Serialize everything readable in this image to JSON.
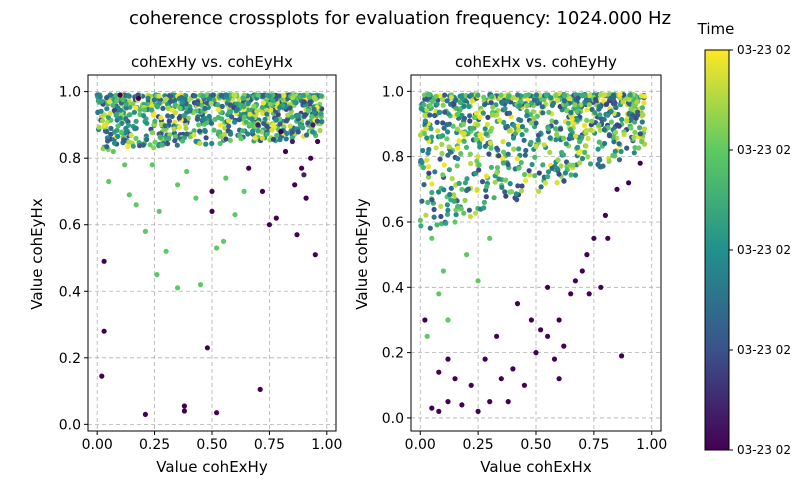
{
  "figure": {
    "suptitle": "coherence crossplots for evaluation frequency: 1024.000 Hz"
  },
  "colorbar": {
    "label": "Time",
    "tick_labels": [
      "03-23 02",
      "03-23 02",
      "03-23 02",
      "03-23 02",
      "03-23 02"
    ],
    "colormap": [
      "#440154",
      "#3b528b",
      "#21918c",
      "#5ec962",
      "#fde725"
    ]
  },
  "chart_data": [
    {
      "type": "scatter",
      "title": "cohExHy vs. cohEyHx",
      "xlabel": "Value cohExHy",
      "ylabel": "Value cohEyHx",
      "xlim": [
        -0.04,
        1.04
      ],
      "ylim": [
        -0.02,
        1.05
      ],
      "xticks": [
        0.0,
        0.25,
        0.5,
        0.75,
        1.0
      ],
      "xtick_labels": [
        "0.00",
        "0.25",
        "0.50",
        "0.75",
        "1.00"
      ],
      "yticks": [
        0.0,
        0.2,
        0.4,
        0.6,
        0.8,
        1.0
      ],
      "ytick_labels": [
        "0.0",
        "0.2",
        "0.4",
        "0.6",
        "0.8",
        "1.0"
      ],
      "grid": true,
      "color_by": "Time",
      "points": [
        [
          0.03,
          0.49,
          0.0
        ],
        [
          0.03,
          0.28,
          0.0
        ],
        [
          0.02,
          0.145,
          0.0
        ],
        [
          0.21,
          0.03,
          0.0
        ],
        [
          0.38,
          0.055,
          0.0
        ],
        [
          0.38,
          0.04,
          0.0
        ],
        [
          0.52,
          0.035,
          0.0
        ],
        [
          0.71,
          0.105,
          0.0
        ],
        [
          0.48,
          0.23,
          0.0
        ],
        [
          0.95,
          0.51,
          0.0
        ],
        [
          0.87,
          0.57,
          0.0
        ],
        [
          0.75,
          0.6,
          0.0
        ],
        [
          0.78,
          0.62,
          0.0
        ],
        [
          0.91,
          0.68,
          0.0
        ],
        [
          0.66,
          0.77,
          0.0
        ],
        [
          0.89,
          0.77,
          0.0
        ],
        [
          0.93,
          0.8,
          0.0
        ],
        [
          0.86,
          0.72,
          0.0
        ],
        [
          0.5,
          0.64,
          0.0
        ],
        [
          0.5,
          0.7,
          0.0
        ],
        [
          0.96,
          0.85,
          0.0
        ],
        [
          0.82,
          0.82,
          0.0
        ],
        [
          0.1,
          0.99,
          0.0
        ],
        [
          0.18,
          0.98,
          0.0
        ],
        [
          0.72,
          0.7,
          0.0
        ],
        [
          0.8,
          0.88,
          0.0
        ],
        [
          0.9,
          0.75,
          0.1
        ],
        [
          0.94,
          0.9,
          0.1
        ],
        [
          0.85,
          0.85,
          0.1
        ],
        [
          0.7,
          0.9,
          0.1
        ],
        [
          0.35,
          0.72,
          0.75
        ],
        [
          0.14,
          0.69,
          0.75
        ],
        [
          0.27,
          0.64,
          0.75
        ],
        [
          0.21,
          0.58,
          0.75
        ],
        [
          0.26,
          0.45,
          0.75
        ],
        [
          0.35,
          0.41,
          0.75
        ],
        [
          0.45,
          0.42,
          0.75
        ],
        [
          0.52,
          0.53,
          0.75
        ],
        [
          0.55,
          0.55,
          0.75
        ],
        [
          0.6,
          0.63,
          0.75
        ],
        [
          0.07,
          0.82,
          0.75
        ],
        [
          0.12,
          0.78,
          0.75
        ],
        [
          0.24,
          0.78,
          0.75
        ],
        [
          0.39,
          0.76,
          0.75
        ],
        [
          0.56,
          0.74,
          0.75
        ],
        [
          0.05,
          0.73,
          0.75
        ],
        [
          0.3,
          0.52,
          0.75
        ],
        [
          0.17,
          0.66,
          0.75
        ],
        [
          0.43,
          0.68,
          0.75
        ],
        [
          0.64,
          0.7,
          0.75
        ]
      ],
      "dense_band": {
        "x_range": [
          0.0,
          0.98
        ],
        "y_top": 0.99,
        "y_floor_at_x0": 0.82,
        "y_floor_at_x1": 0.86
      }
    },
    {
      "type": "scatter",
      "title": "cohExHx vs. cohEyHy",
      "xlabel": "Value cohExHx",
      "ylabel": "Value cohEyHy",
      "xlim": [
        -0.04,
        1.04
      ],
      "ylim": [
        -0.04,
        1.05
      ],
      "xticks": [
        0.0,
        0.25,
        0.5,
        0.75,
        1.0
      ],
      "xtick_labels": [
        "0.00",
        "0.25",
        "0.50",
        "0.75",
        "1.00"
      ],
      "yticks": [
        0.0,
        0.2,
        0.4,
        0.6,
        0.8,
        1.0
      ],
      "ytick_labels": [
        "0.0",
        "0.2",
        "0.4",
        "0.6",
        "0.8",
        "1.0"
      ],
      "grid": true,
      "color_by": "Time",
      "points": [
        [
          0.05,
          0.03,
          0.0
        ],
        [
          0.08,
          0.02,
          0.0
        ],
        [
          0.12,
          0.05,
          0.0
        ],
        [
          0.18,
          0.04,
          0.0
        ],
        [
          0.25,
          0.02,
          0.0
        ],
        [
          0.3,
          0.05,
          0.0
        ],
        [
          0.22,
          0.1,
          0.0
        ],
        [
          0.35,
          0.12,
          0.0
        ],
        [
          0.28,
          0.18,
          0.0
        ],
        [
          0.4,
          0.15,
          0.0
        ],
        [
          0.45,
          0.1,
          0.0
        ],
        [
          0.5,
          0.2,
          0.0
        ],
        [
          0.55,
          0.25,
          0.0
        ],
        [
          0.6,
          0.3,
          0.0
        ],
        [
          0.65,
          0.38,
          0.0
        ],
        [
          0.7,
          0.45,
          0.0
        ],
        [
          0.72,
          0.5,
          0.0
        ],
        [
          0.75,
          0.55,
          0.0
        ],
        [
          0.8,
          0.62,
          0.0
        ],
        [
          0.85,
          0.7,
          0.0
        ],
        [
          0.9,
          0.72,
          0.0
        ],
        [
          0.95,
          0.78,
          0.0
        ],
        [
          0.87,
          0.19,
          0.0
        ],
        [
          0.58,
          0.18,
          0.0
        ],
        [
          0.62,
          0.22,
          0.0
        ],
        [
          0.48,
          0.3,
          0.0
        ],
        [
          0.42,
          0.35,
          0.0
        ],
        [
          0.33,
          0.25,
          0.0
        ],
        [
          0.12,
          0.18,
          0.0
        ],
        [
          0.15,
          0.12,
          0.0
        ],
        [
          0.67,
          0.42,
          0.0
        ],
        [
          0.73,
          0.38,
          0.0
        ],
        [
          0.52,
          0.27,
          0.0
        ],
        [
          0.38,
          0.05,
          0.0
        ],
        [
          0.08,
          0.14,
          0.0
        ],
        [
          0.02,
          0.3,
          0.0
        ],
        [
          0.6,
          0.12,
          0.0
        ],
        [
          0.78,
          0.4,
          0.0
        ],
        [
          0.81,
          0.55,
          0.0
        ],
        [
          0.55,
          0.4,
          0.0
        ],
        [
          0.1,
          0.45,
          0.75
        ],
        [
          0.05,
          0.55,
          0.75
        ],
        [
          0.15,
          0.6,
          0.75
        ],
        [
          0.2,
          0.5,
          0.75
        ],
        [
          0.08,
          0.38,
          0.75
        ],
        [
          0.03,
          0.25,
          0.75
        ],
        [
          0.12,
          0.3,
          0.75
        ],
        [
          0.25,
          0.42,
          0.75
        ],
        [
          0.3,
          0.55,
          0.75
        ],
        [
          0.18,
          0.7,
          0.75
        ]
      ],
      "dense_band": {
        "x_range": [
          0.0,
          0.97
        ],
        "y_top": 0.99,
        "y_floor_at_x0": 0.55,
        "y_floor_at_x1": 0.82
      }
    }
  ]
}
